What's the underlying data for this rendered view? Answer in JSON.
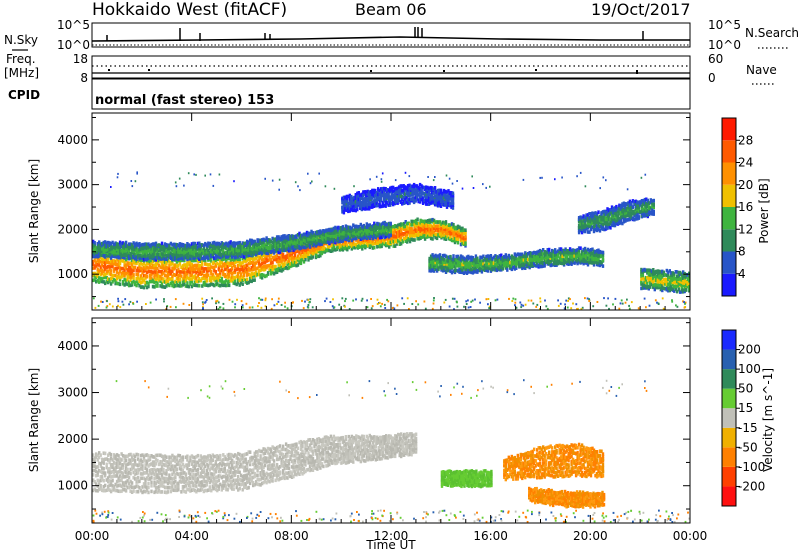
{
  "header": {
    "radar": "Hokkaido West (fitACF)",
    "beam": "Beam 06",
    "date": "19/Oct/2017"
  },
  "top_panels": {
    "nsky_label": "N.Sky",
    "nsky_ticks": [
      "10^5",
      "10^0"
    ],
    "nsearch_label": "N.Search",
    "freq_label_1": "Freq.",
    "freq_label_2": "[MHz]",
    "freq_ticks": [
      "18",
      "8"
    ],
    "nave_label": "Nave",
    "nave_ticks": [
      "60",
      "0"
    ],
    "cpid_label": "CPID",
    "cpid_value": "normal (fast stereo) 153"
  },
  "chart_data": [
    {
      "type": "heatmap",
      "title": "",
      "xlabel": "Time UT",
      "ylabel": "Slant Range [km]",
      "x_ticks": [
        "00:00",
        "04:00",
        "08:00",
        "12:00",
        "16:00",
        "20:00",
        "00:00"
      ],
      "x_hours": [
        0,
        4,
        8,
        12,
        16,
        20,
        24
      ],
      "y_ticks": [
        1000,
        2000,
        3000,
        4000
      ],
      "ylim": [
        200,
        4600
      ],
      "colorbar_label": "Power [dB]",
      "colorbar_ticks": [
        4,
        8,
        12,
        16,
        20,
        24,
        28
      ],
      "colorbar_range": [
        0,
        32
      ],
      "colorbar_colors": [
        "#1a1aff",
        "#2855c8",
        "#2f8a5a",
        "#3fb43f",
        "#f0c000",
        "#ff9000",
        "#ff5a00",
        "#ff1a00"
      ],
      "bands": [
        {
          "t": [
            0,
            2,
            4,
            6,
            8,
            9.5,
            11,
            12,
            13,
            14,
            15
          ],
          "center": [
            1200,
            1050,
            1050,
            1100,
            1450,
            1750,
            1800,
            1850,
            2000,
            2000,
            1800
          ],
          "width": [
            350,
            330,
            300,
            320,
            280,
            220,
            200,
            220,
            200,
            180,
            160
          ],
          "level": 26
        },
        {
          "t": [
            0,
            2,
            4,
            6,
            8,
            10,
            12
          ],
          "center": [
            1550,
            1500,
            1500,
            1550,
            1700,
            1900,
            2000
          ],
          "width": [
            150,
            160,
            150,
            150,
            150,
            140,
            140
          ],
          "level": 14
        },
        {
          "t": [
            13.5,
            15,
            16.5,
            18,
            19.5,
            20.5
          ],
          "center": [
            1250,
            1200,
            1250,
            1350,
            1400,
            1350
          ],
          "width": [
            160,
            160,
            140,
            160,
            150,
            150
          ],
          "level": 15
        },
        {
          "t": [
            19.5,
            20.5,
            21.5,
            22.5
          ],
          "center": [
            2100,
            2200,
            2400,
            2500
          ],
          "width": [
            160,
            200,
            200,
            160
          ],
          "level": 12
        },
        {
          "t": [
            22,
            23,
            24
          ],
          "center": [
            900,
            850,
            800
          ],
          "width": [
            200,
            200,
            200
          ],
          "level": 18
        },
        {
          "t": [
            10,
            11.5,
            13,
            14.5
          ],
          "center": [
            2550,
            2700,
            2800,
            2650
          ],
          "width": [
            160,
            180,
            180,
            160
          ],
          "level": 7
        }
      ]
    },
    {
      "type": "heatmap",
      "title": "",
      "xlabel": "Time UT",
      "ylabel": "Slant Range [km]",
      "x_ticks": [
        "00:00",
        "04:00",
        "08:00",
        "12:00",
        "16:00",
        "20:00",
        "00:00"
      ],
      "x_hours": [
        0,
        4,
        8,
        12,
        16,
        20,
        24
      ],
      "y_ticks": [
        1000,
        2000,
        3000,
        4000
      ],
      "ylim": [
        200,
        4600
      ],
      "colorbar_label": "Velocity [m s^-1]",
      "colorbar_ticks": [
        "200",
        "100",
        "50",
        "15",
        "-15",
        "-50",
        "-100",
        "-200"
      ],
      "colorbar_colors": [
        "#1a2aff",
        "#2860b0",
        "#2f8a5a",
        "#66cc33",
        "#c0c0b8",
        "#f0b000",
        "#ff8000",
        "#ff4000",
        "#ff1010"
      ],
      "bands": [
        {
          "t": [
            0,
            2,
            4,
            6,
            8,
            9.5,
            11,
            12,
            13
          ],
          "center": [
            1300,
            1250,
            1250,
            1300,
            1550,
            1750,
            1800,
            1850,
            1900
          ],
          "width": [
            380,
            380,
            360,
            360,
            340,
            280,
            240,
            220,
            200
          ],
          "level": "-15..15"
        },
        {
          "t": [
            14,
            15,
            16
          ],
          "center": [
            1150,
            1150,
            1150
          ],
          "width": [
            140,
            140,
            140
          ],
          "level": "15..50"
        },
        {
          "t": [
            16.5,
            18,
            19.5,
            20.5
          ],
          "center": [
            1350,
            1500,
            1550,
            1450
          ],
          "width": [
            200,
            300,
            320,
            240
          ],
          "level": "-50..-100"
        },
        {
          "t": [
            17.5,
            19,
            20.5
          ],
          "center": [
            800,
            700,
            700
          ],
          "width": [
            120,
            140,
            120
          ],
          "level": "-50..-100"
        }
      ]
    }
  ]
}
